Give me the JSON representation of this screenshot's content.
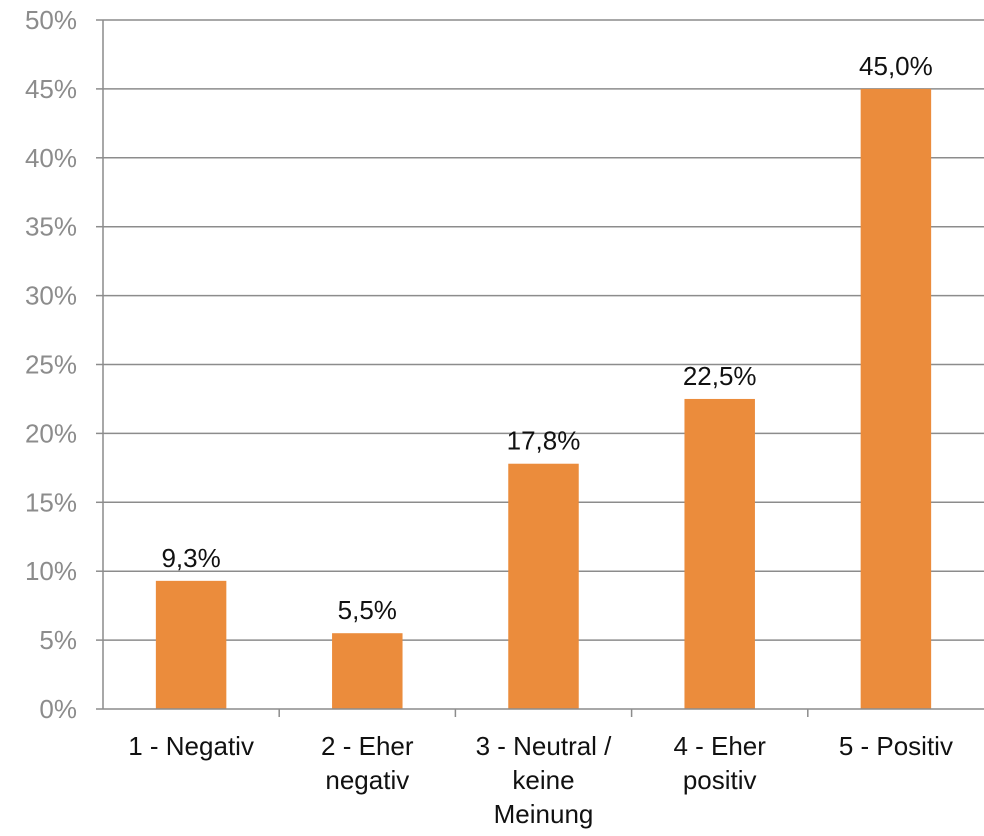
{
  "chart_data": {
    "type": "bar",
    "title": "",
    "xlabel": "",
    "ylabel": "",
    "categories": [
      "1 - Negativ",
      "2 - Eher negativ",
      "3 - Neutral / keine Meinung",
      "4 - Eher positiv",
      "5 - Positiv"
    ],
    "category_label_lines": [
      [
        "1 - Negativ"
      ],
      [
        "2 - Eher",
        "negativ"
      ],
      [
        "3 - Neutral /",
        "keine",
        "Meinung"
      ],
      [
        "4 - Eher",
        "positiv"
      ],
      [
        "5 - Positiv"
      ]
    ],
    "values": [
      9.3,
      5.5,
      17.8,
      22.5,
      45.0
    ],
    "data_labels": [
      "9,3%",
      "5,5%",
      "17,8%",
      "22,5%",
      "45,0%"
    ],
    "ylim": [
      0,
      50
    ],
    "yticks": [
      0,
      5,
      10,
      15,
      20,
      25,
      30,
      35,
      40,
      45,
      50
    ],
    "ytick_labels": [
      "0%",
      "5%",
      "10%",
      "15%",
      "20%",
      "25%",
      "30%",
      "35%",
      "40%",
      "45%",
      "50%"
    ],
    "grid": true,
    "legend": "none",
    "bar_color": "#EB8C3C",
    "grid_color": "#8C8C8C",
    "tick_label_color": "#8C8C8C",
    "label_color": "#111111"
  }
}
